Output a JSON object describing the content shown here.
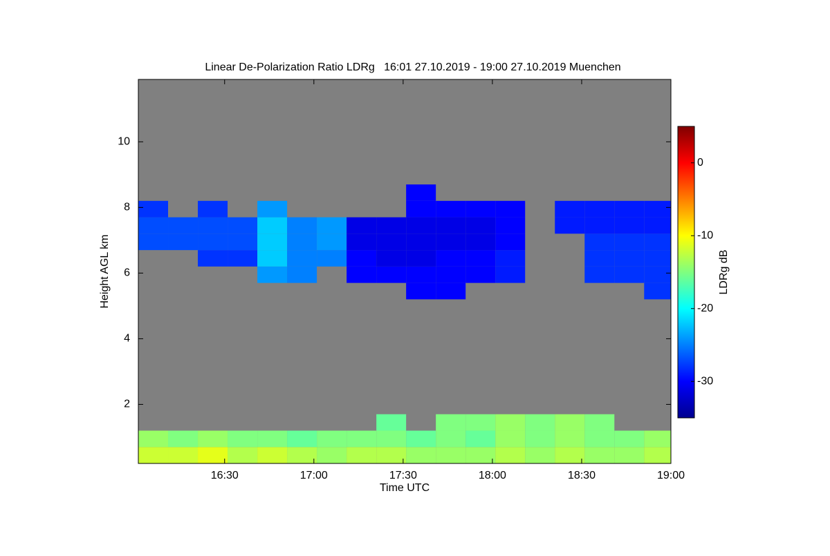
{
  "chart_data": {
    "type": "heatmap",
    "title": "Linear De-Polarization Ratio LDRg   16:01 27.10.2019 - 19:00 27.10.2019 Muenchen",
    "x_label": "Time UTC",
    "y_label": "Height AGL km",
    "colorbar_label": "LDRg dB",
    "colormap": "jet",
    "background": "#808080",
    "xlim": [
      961,
      1140
    ],
    "xticks": [
      {
        "value": 990,
        "label": "16:30"
      },
      {
        "value": 1020,
        "label": "17:00"
      },
      {
        "value": 1050,
        "label": "17:30"
      },
      {
        "value": 1080,
        "label": "18:00"
      },
      {
        "value": 1110,
        "label": "18:30"
      },
      {
        "value": 1140,
        "label": "19:00"
      }
    ],
    "ylim": [
      0.2,
      11.9
    ],
    "yticks": [
      2,
      4,
      6,
      8,
      10
    ],
    "clim": [
      -35,
      5
    ],
    "cticks": [
      0,
      -10,
      -20,
      -30
    ],
    "x": [
      966,
      976,
      986,
      996,
      1006,
      1016,
      1026,
      1036,
      1046,
      1056,
      1066,
      1076,
      1086,
      1096,
      1106,
      1116,
      1126,
      1136
    ],
    "y": [
      0.45,
      0.95,
      1.45,
      1.95,
      2.45,
      2.95,
      3.45,
      3.95,
      4.45,
      4.95,
      5.45,
      5.95,
      6.45,
      6.95,
      7.45,
      7.95,
      8.45
    ],
    "z": [
      [
        -12,
        -12,
        -11,
        -13,
        -12,
        -13,
        -14,
        -13,
        -13,
        -14,
        -14,
        -14,
        -13,
        -14,
        -13,
        -14,
        -14,
        -13
      ],
      [
        -14,
        -15,
        -14,
        -15,
        -15,
        -16,
        -15,
        -15,
        -15,
        -16,
        -15,
        -16,
        -14,
        -15,
        -14,
        -15,
        -15,
        -14
      ],
      [
        null,
        null,
        null,
        null,
        null,
        null,
        null,
        null,
        -16,
        null,
        -15,
        -15,
        -14,
        -15,
        -14,
        -15,
        null,
        null
      ],
      [
        null,
        null,
        null,
        null,
        null,
        null,
        null,
        null,
        null,
        null,
        null,
        null,
        null,
        null,
        null,
        null,
        null,
        null
      ],
      [
        null,
        null,
        null,
        null,
        null,
        null,
        null,
        null,
        null,
        null,
        null,
        null,
        null,
        null,
        null,
        null,
        null,
        null
      ],
      [
        null,
        null,
        null,
        null,
        null,
        null,
        null,
        null,
        null,
        null,
        null,
        null,
        null,
        null,
        null,
        null,
        null,
        null
      ],
      [
        null,
        null,
        null,
        null,
        null,
        null,
        null,
        null,
        null,
        null,
        null,
        null,
        null,
        null,
        null,
        null,
        null,
        null
      ],
      [
        null,
        null,
        null,
        null,
        null,
        null,
        null,
        null,
        null,
        null,
        null,
        null,
        null,
        null,
        null,
        null,
        null,
        null
      ],
      [
        null,
        null,
        null,
        null,
        null,
        null,
        null,
        null,
        null,
        null,
        null,
        null,
        null,
        null,
        null,
        null,
        null,
        null
      ],
      [
        null,
        null,
        null,
        null,
        null,
        null,
        null,
        null,
        null,
        null,
        null,
        null,
        null,
        null,
        null,
        null,
        null,
        null
      ],
      [
        null,
        null,
        null,
        null,
        null,
        null,
        null,
        null,
        null,
        -30,
        -30,
        null,
        null,
        null,
        null,
        null,
        null,
        -28
      ],
      [
        null,
        null,
        null,
        null,
        -24,
        -25,
        null,
        -30,
        -30,
        -30,
        -30,
        -30,
        -29,
        null,
        null,
        -28,
        -28,
        -28
      ],
      [
        null,
        null,
        -28,
        -28,
        -22,
        -25,
        -25,
        -30,
        -31,
        -31,
        -30,
        -30,
        -29,
        null,
        null,
        -28,
        -28,
        -28
      ],
      [
        -27,
        -27,
        -27,
        -27,
        -22,
        -25,
        -24,
        -31,
        -31,
        -31,
        -31,
        -31,
        -30,
        null,
        null,
        -28,
        -28,
        -28
      ],
      [
        -27,
        -27,
        -27,
        -27,
        -22,
        -25,
        -24,
        -31,
        -31,
        -31,
        -31,
        -31,
        -30,
        null,
        -29,
        -29,
        -29,
        -29
      ],
      [
        -28,
        null,
        -28,
        null,
        -24,
        null,
        null,
        null,
        null,
        -30,
        -30,
        -30,
        -30,
        null,
        -29,
        -29,
        -29,
        -29
      ],
      [
        null,
        null,
        null,
        null,
        null,
        null,
        null,
        null,
        null,
        -30,
        null,
        null,
        null,
        null,
        null,
        null,
        null,
        null
      ]
    ]
  }
}
